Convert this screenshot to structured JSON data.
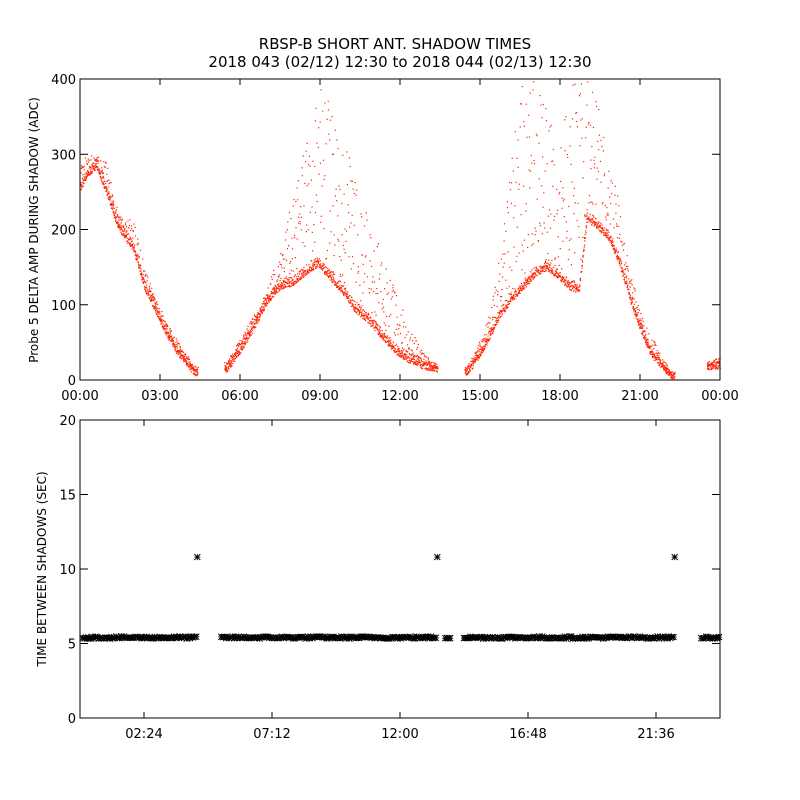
{
  "titles": {
    "line1": "RBSP-B SHORT ANT. SHADOW TIMES",
    "line2": "2018 043 (02/12) 12:30 to 2018 044 (02/13) 12:30"
  },
  "colors": {
    "top_series": "#ff2200",
    "bottom_series": "#000000"
  },
  "chart_data": [
    {
      "type": "scatter",
      "title": "RBSP-B SHORT ANT. SHADOW TIMES",
      "xlabel": "",
      "ylabel": "Probe 5 DELTA AMP DURING SHADOW (ADC)",
      "xlim": [
        0,
        24
      ],
      "ylim": [
        0,
        400
      ],
      "xtick_values": [
        0,
        3,
        6,
        9,
        12,
        15,
        18,
        21,
        24
      ],
      "xtick_labels": [
        "00:00",
        "03:00",
        "06:00",
        "09:00",
        "12:00",
        "15:00",
        "18:00",
        "21:00",
        "00:00"
      ],
      "ytick_values": [
        0,
        100,
        200,
        300,
        400
      ],
      "ytick_labels": [
        "0",
        "100",
        "200",
        "300",
        "400"
      ],
      "grid": false,
      "series": [
        {
          "color": "#ff2200",
          "marker": "dot",
          "description_points": {
            "x_hours": [
              0.0,
              0.3,
              0.6,
              1.0,
              1.3,
              1.6,
              2.0,
              2.4,
              2.8,
              3.2,
              3.6,
              4.0,
              4.3,
              5.5,
              6.0,
              6.5,
              7.0,
              7.5,
              8.0,
              8.5,
              8.9,
              9.3,
              9.8,
              10.3,
              10.8,
              11.3,
              11.8,
              12.3,
              12.8,
              13.3,
              14.5,
              14.9,
              15.3,
              15.7,
              16.1,
              16.5,
              17.0,
              17.5,
              17.9,
              18.3,
              18.7,
              19.0,
              19.4,
              19.8,
              20.2,
              20.6,
              21.0,
              21.4,
              21.8,
              22.2,
              23.6,
              24.0
            ],
            "y_lower": [
              255,
              275,
              285,
              250,
              215,
              195,
              175,
              125,
              95,
              65,
              40,
              22,
              10,
              15,
              40,
              70,
              105,
              125,
              130,
              145,
              155,
              140,
              120,
              95,
              80,
              60,
              40,
              28,
              20,
              15,
              10,
              30,
              55,
              85,
              105,
              120,
              140,
              150,
              140,
              125,
              120,
              215,
              205,
              190,
              160,
              110,
              70,
              35,
              20,
              5,
              18,
              20
            ],
            "y_upper": [
              290,
              300,
              300,
              290,
              235,
              215,
              215,
              150,
              110,
              80,
              55,
              35,
              15,
              25,
              55,
              85,
              120,
              175,
              250,
              330,
              390,
              400,
              330,
              270,
              220,
              170,
              120,
              75,
              40,
              20,
              18,
              45,
              85,
              160,
              270,
              400,
              400,
              360,
              310,
              400,
              400,
              400,
              380,
              300,
              240,
              150,
              90,
              60,
              30,
              8,
              25,
              30
            ]
          },
          "gaps_hours": [
            [
              4.4,
              5.4
            ],
            [
              13.4,
              14.4
            ],
            [
              22.3,
              23.5
            ]
          ]
        }
      ]
    },
    {
      "type": "scatter",
      "xlabel": "",
      "ylabel": "TIME BETWEEN SHADOWS (SEC)",
      "xlim": [
        0,
        24
      ],
      "ylim": [
        0,
        20
      ],
      "xtick_values": [
        2.4,
        7.2,
        12.0,
        16.8,
        21.6
      ],
      "xtick_labels": [
        "02:24",
        "07:12",
        "12:00",
        "16:48",
        "21:36"
      ],
      "ytick_values": [
        0,
        5,
        10,
        15,
        20
      ],
      "ytick_labels": [
        "0",
        "5",
        "10",
        "15",
        "20"
      ],
      "grid": false,
      "series": [
        {
          "color": "#000000",
          "marker": "asterisk",
          "baseline_value": 5.4,
          "baseline_segments_hours": [
            [
              0.1,
              4.4
            ],
            [
              5.3,
              13.4
            ],
            [
              13.7,
              13.9
            ],
            [
              14.4,
              22.3
            ],
            [
              23.3,
              24.0
            ]
          ],
          "outlier_points": [
            {
              "x_hours": 4.4,
              "y": 10.8
            },
            {
              "x_hours": 13.4,
              "y": 10.8
            },
            {
              "x_hours": 22.3,
              "y": 10.8
            }
          ]
        }
      ]
    }
  ]
}
